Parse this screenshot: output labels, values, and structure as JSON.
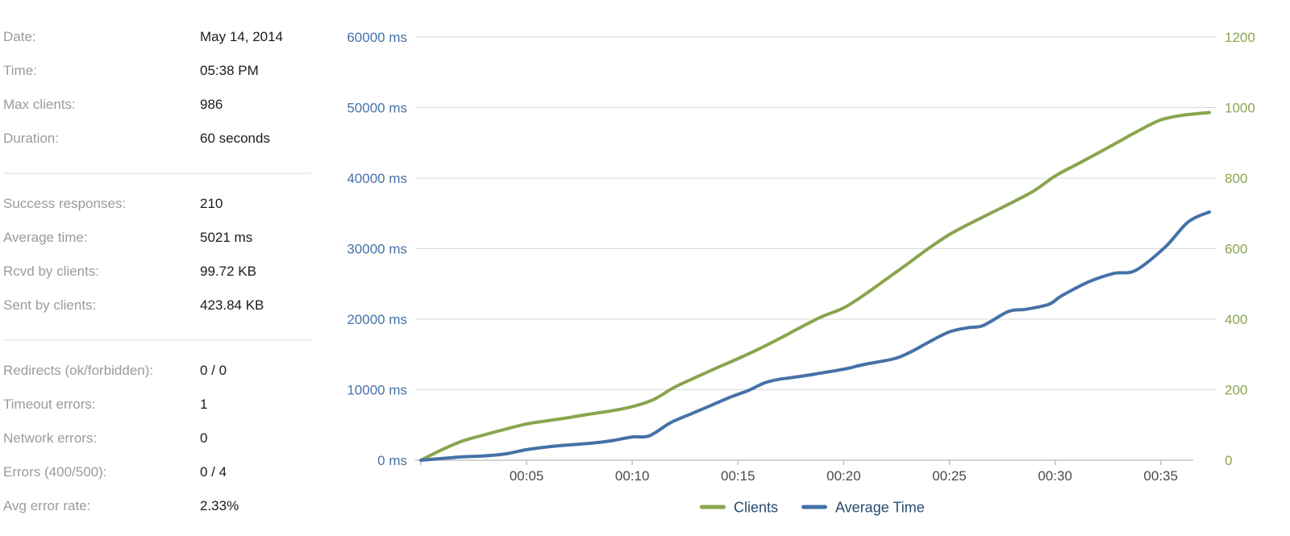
{
  "stats": {
    "sections": [
      {
        "rows": [
          {
            "label": "Date:",
            "value": "May 14, 2014"
          },
          {
            "label": "Time:",
            "value": "05:38 PM"
          },
          {
            "label": "Max clients:",
            "value": "986"
          },
          {
            "label": "Duration:",
            "value": "60 seconds"
          }
        ]
      },
      {
        "rows": [
          {
            "label": "Success responses:",
            "value": "210"
          },
          {
            "label": "Average time:",
            "value": "5021 ms"
          },
          {
            "label": "Rcvd by clients:",
            "value": "99.72 KB"
          },
          {
            "label": "Sent by clients:",
            "value": "423.84 KB"
          }
        ]
      },
      {
        "rows": [
          {
            "label": "Redirects (ok/forbidden):",
            "value": "0 / 0"
          },
          {
            "label": "Timeout errors:",
            "value": "1"
          },
          {
            "label": "Network errors:",
            "value": "0"
          },
          {
            "label": "Errors (400/500):",
            "value": "0 / 4"
          },
          {
            "label": "Avg error rate:",
            "value": "2.33%"
          }
        ]
      }
    ]
  },
  "chart_data": {
    "type": "line",
    "title": "",
    "grid": true,
    "x_axis": {
      "unit": "mm:ss",
      "min_seconds": 0,
      "max_seconds": 37.3,
      "tick_seconds": [
        5,
        10,
        15,
        20,
        25,
        30,
        35
      ],
      "tick_labels": [
        "00:05",
        "00:10",
        "00:15",
        "00:20",
        "00:25",
        "00:30",
        "00:35"
      ]
    },
    "y_axis_left": {
      "min": 0,
      "max": 60000,
      "step": 10000,
      "color": "#4572A7",
      "tick_labels": [
        "0 ms",
        "10000 ms",
        "20000 ms",
        "30000 ms",
        "40000 ms",
        "50000 ms",
        "60000 ms"
      ]
    },
    "y_axis_right": {
      "min": 0,
      "max": 1200,
      "step": 200,
      "color": "#89A54E",
      "tick_labels": [
        "0",
        "200",
        "400",
        "600",
        "800",
        "1000",
        "1200"
      ]
    },
    "legend": {
      "position": "bottom-center",
      "items": [
        "Clients",
        "Average Time"
      ]
    },
    "series": [
      {
        "name": "Clients",
        "axis": "right",
        "color": "#89A54E",
        "points": [
          [
            0,
            0
          ],
          [
            1,
            30
          ],
          [
            2,
            55
          ],
          [
            3,
            72
          ],
          [
            4,
            88
          ],
          [
            5,
            103
          ],
          [
            6,
            112
          ],
          [
            7,
            121
          ],
          [
            8,
            131
          ],
          [
            9,
            140
          ],
          [
            10,
            152
          ],
          [
            11,
            172
          ],
          [
            12,
            207
          ],
          [
            13,
            235
          ],
          [
            14,
            262
          ],
          [
            15,
            288
          ],
          [
            16,
            316
          ],
          [
            17,
            346
          ],
          [
            18,
            378
          ],
          [
            19,
            408
          ],
          [
            20,
            432
          ],
          [
            21,
            470
          ],
          [
            22,
            513
          ],
          [
            23,
            556
          ],
          [
            24,
            600
          ],
          [
            25,
            640
          ],
          [
            26,
            672
          ],
          [
            27,
            702
          ],
          [
            28,
            732
          ],
          [
            29,
            764
          ],
          [
            30,
            806
          ],
          [
            31,
            838
          ],
          [
            32,
            870
          ],
          [
            33,
            903
          ],
          [
            34,
            936
          ],
          [
            35,
            965
          ],
          [
            36,
            978
          ],
          [
            37.3,
            986
          ]
        ]
      },
      {
        "name": "Average Time",
        "axis": "left",
        "color": "#4572A7",
        "points": [
          [
            0,
            0
          ],
          [
            1,
            250
          ],
          [
            2,
            480
          ],
          [
            3,
            620
          ],
          [
            4,
            900
          ],
          [
            5,
            1500
          ],
          [
            6,
            1900
          ],
          [
            7,
            2170
          ],
          [
            8,
            2400
          ],
          [
            9,
            2750
          ],
          [
            10,
            3300
          ],
          [
            10.8,
            3450
          ],
          [
            11.8,
            5300
          ],
          [
            12.8,
            6600
          ],
          [
            13.7,
            7740
          ],
          [
            14.6,
            8900
          ],
          [
            15.5,
            9900
          ],
          [
            16.2,
            10900
          ],
          [
            16.8,
            11400
          ],
          [
            17.5,
            11700
          ],
          [
            18.2,
            12000
          ],
          [
            19,
            12400
          ],
          [
            20,
            12900
          ],
          [
            21,
            13600
          ],
          [
            22.4,
            14400
          ],
          [
            23.2,
            15400
          ],
          [
            24,
            16700
          ],
          [
            25,
            18200
          ],
          [
            25.9,
            18800
          ],
          [
            26.6,
            19100
          ],
          [
            27.8,
            21100
          ],
          [
            28.6,
            21400
          ],
          [
            29.7,
            22100
          ],
          [
            30.3,
            23300
          ],
          [
            31.6,
            25300
          ],
          [
            32.8,
            26500
          ],
          [
            33.8,
            26900
          ],
          [
            35.2,
            30200
          ],
          [
            36.3,
            33800
          ],
          [
            37.3,
            35200
          ]
        ]
      }
    ],
    "style": {
      "grid_color": "#d8d8d8",
      "axis_line_color": "#c6c6c6",
      "tick_color": "#c0c0c0",
      "x_label_color": "#4a4a4a",
      "legend_text_color": "#274b6d",
      "line_width": 4
    }
  }
}
